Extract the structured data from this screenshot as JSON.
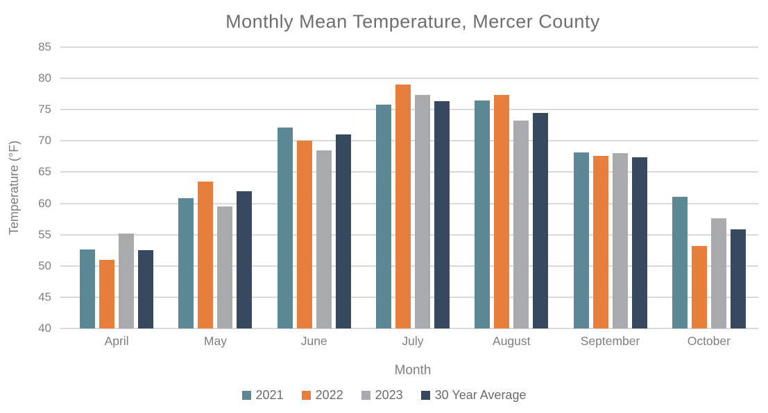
{
  "chart_data": {
    "type": "bar",
    "title": "Monthly Mean Temperature, Mercer County",
    "xlabel": "Month",
    "ylabel": "Temperature (°F)",
    "categories": [
      "April",
      "May",
      "June",
      "July",
      "August",
      "September",
      "October"
    ],
    "series": [
      {
        "name": "2021",
        "color": "#5C8895",
        "values": [
          52.6,
          60.8,
          72.2,
          75.8,
          76.5,
          68.2,
          61.1
        ]
      },
      {
        "name": "2022",
        "color": "#E87E3B",
        "values": [
          51.0,
          63.5,
          70.0,
          79.0,
          77.4,
          67.6,
          53.2
        ]
      },
      {
        "name": "2023",
        "color": "#A9AAAE",
        "values": [
          55.2,
          59.5,
          68.5,
          77.3,
          73.2,
          68.0,
          57.6
        ]
      },
      {
        "name": "30 Year Average",
        "color": "#37495F",
        "values": [
          52.5,
          62.0,
          71.0,
          76.4,
          74.5,
          67.4,
          55.8
        ]
      }
    ],
    "ylim": [
      40,
      85
    ],
    "yticks": [
      40,
      45,
      50,
      55,
      60,
      65,
      70,
      75,
      80,
      85
    ],
    "grid": true,
    "legend_position": "bottom",
    "colors": {
      "gridline": "#d9d9d9",
      "axis_text": "#7f7f7f",
      "title_text": "#6e6e6e",
      "legend_text": "#6b6b6b"
    }
  }
}
